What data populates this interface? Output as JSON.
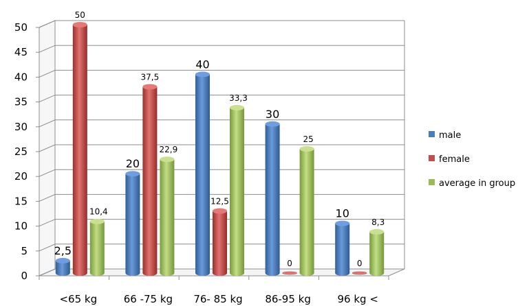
{
  "chart_data": {
    "type": "bar",
    "categories": [
      "<65 kg",
      "66 -75 kg",
      "76- 85 kg",
      "86-95 kg",
      "96  kg <"
    ],
    "series": [
      {
        "name": "male",
        "values": [
          2.5,
          20,
          40,
          30,
          10
        ],
        "labels": [
          "2,5",
          "20",
          "40",
          "30",
          "10"
        ],
        "color": "#4a7ebb"
      },
      {
        "name": "female",
        "values": [
          50,
          37.5,
          12.5,
          0,
          0
        ],
        "labels": [
          "50",
          "37,5",
          "12,5",
          "0",
          "0"
        ],
        "color": "#c0504d"
      },
      {
        "name": "average in group",
        "values": [
          10.4,
          22.9,
          33.3,
          25,
          8.3
        ],
        "labels": [
          "10,4",
          "22,9",
          "33,3",
          "25",
          "8,3"
        ],
        "color": "#9bbb59"
      }
    ],
    "yticks": [
      "0",
      "5",
      "10",
      "15",
      "20",
      "25",
      "30",
      "35",
      "40",
      "45",
      "50"
    ],
    "ylim": [
      0,
      50
    ],
    "grid": true,
    "legend": "right",
    "style": "3d"
  }
}
